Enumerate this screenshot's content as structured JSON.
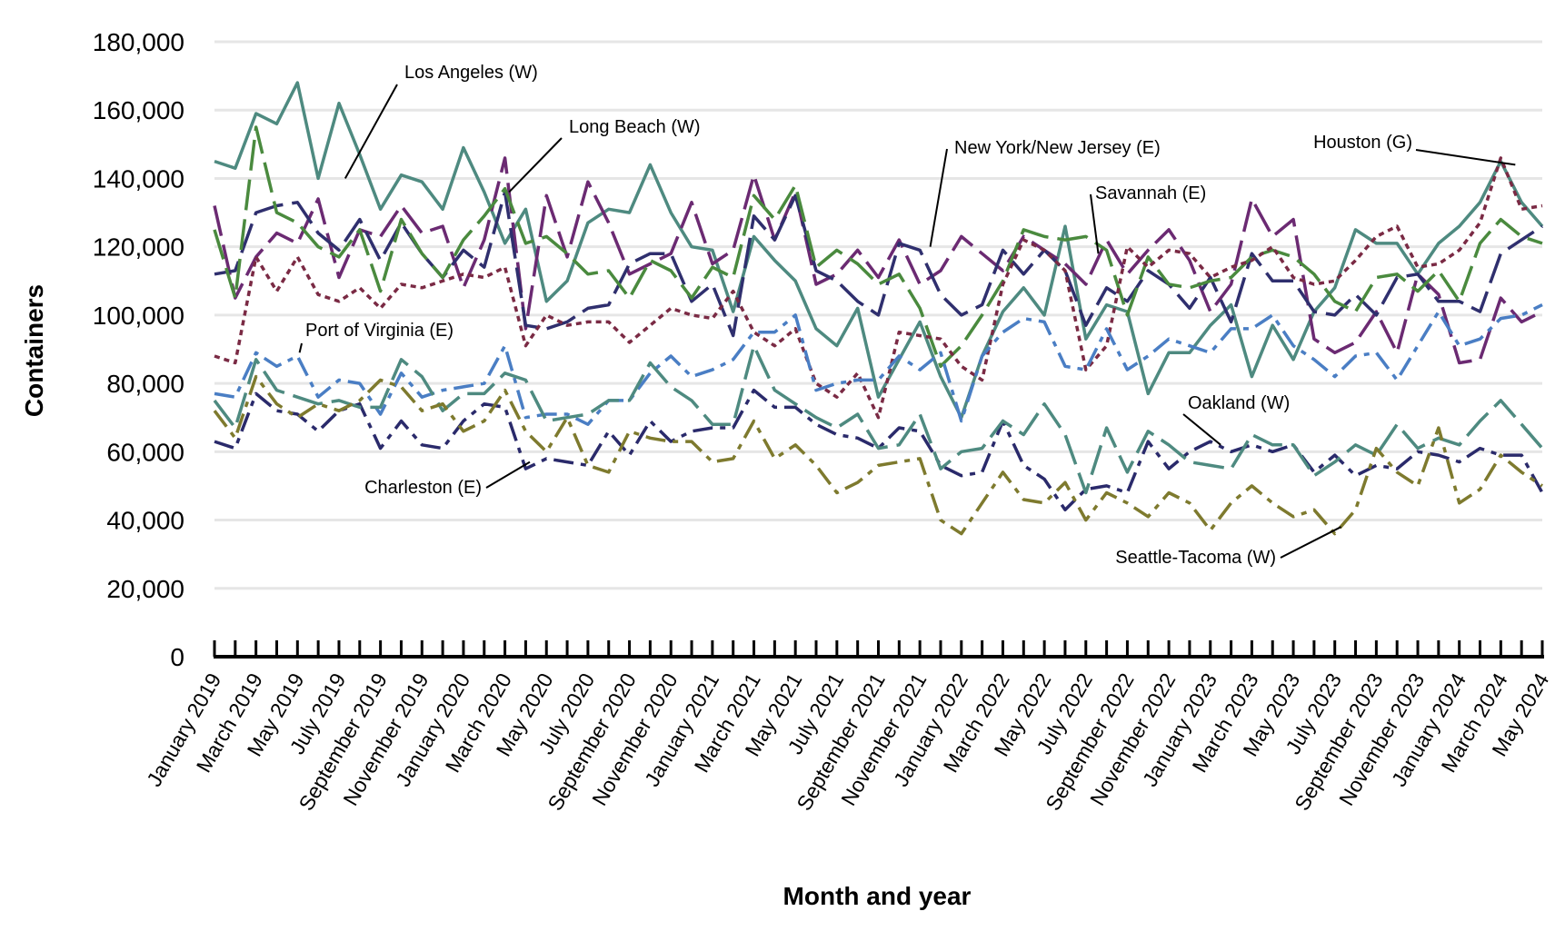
{
  "chart_data": {
    "type": "line",
    "xlabel": "Month and year",
    "ylabel": "Containers",
    "ylim": [
      0,
      180000
    ],
    "yticks": [
      0,
      20000,
      40000,
      60000,
      80000,
      100000,
      120000,
      140000,
      160000,
      180000
    ],
    "ytick_labels": [
      "0",
      "20,000",
      "40,000",
      "60,000",
      "80,000",
      "100,000",
      "120,000",
      "140,000",
      "160,000",
      "180,000"
    ],
    "grid": true,
    "x_tick_labels": [
      "January 2019",
      "March 2019",
      "May 2019",
      "July 2019",
      "September 2019",
      "November 2019",
      "January 2020",
      "March 2020",
      "May 2020",
      "July 2020",
      "September 2020",
      "November 2020",
      "January 2021",
      "March 2021",
      "May 2021",
      "July 2021",
      "September 2021",
      "November 2021",
      "January 2022",
      "March 2022",
      "May 2022",
      "July 2022",
      "September 2022",
      "November 2022",
      "January 2023",
      "March 2023",
      "May 2023",
      "July 2023",
      "September 2023",
      "November 2023",
      "January 2024",
      "March 2024",
      "May 2024"
    ],
    "categories": [
      "Jan 2019",
      "Feb 2019",
      "Mar 2019",
      "Apr 2019",
      "May 2019",
      "Jun 2019",
      "Jul 2019",
      "Aug 2019",
      "Sep 2019",
      "Oct 2019",
      "Nov 2019",
      "Dec 2019",
      "Jan 2020",
      "Feb 2020",
      "Mar 2020",
      "Apr 2020",
      "May 2020",
      "Jun 2020",
      "Jul 2020",
      "Aug 2020",
      "Sep 2020",
      "Oct 2020",
      "Nov 2020",
      "Dec 2020",
      "Jan 2021",
      "Feb 2021",
      "Mar 2021",
      "Apr 2021",
      "May 2021",
      "Jun 2021",
      "Jul 2021",
      "Aug 2021",
      "Sep 2021",
      "Oct 2021",
      "Nov 2021",
      "Dec 2021",
      "Jan 2022",
      "Feb 2022",
      "Mar 2022",
      "Apr 2022",
      "May 2022",
      "Jun 2022",
      "Jul 2022",
      "Aug 2022",
      "Sep 2022",
      "Oct 2022",
      "Nov 2022",
      "Dec 2022",
      "Jan 2023",
      "Feb 2023",
      "Mar 2023",
      "Apr 2023",
      "May 2023",
      "Jun 2023",
      "Jul 2023",
      "Aug 2023",
      "Sep 2023",
      "Oct 2023",
      "Nov 2023",
      "Dec 2023",
      "Jan 2024",
      "Feb 2024",
      "Mar 2024",
      "Apr 2024",
      "May 2024"
    ],
    "series": [
      {
        "name": "Los Angeles (W)",
        "color": "#4e8a80",
        "dash": "solid",
        "values": [
          145000,
          143000,
          159000,
          156000,
          168000,
          140000,
          162000,
          147000,
          131000,
          141000,
          139000,
          131000,
          149000,
          136000,
          121000,
          131000,
          104000,
          110000,
          127000,
          131000,
          130000,
          144000,
          130000,
          120000,
          119000,
          101000,
          123000,
          116000,
          110000,
          96000,
          91000,
          102000,
          76000,
          87000,
          98000,
          82000,
          70000,
          88000,
          101000,
          108000,
          100000,
          126000,
          93000,
          103000,
          101000,
          77000,
          89000,
          89000,
          97000,
          103000,
          82000,
          97000,
          87000,
          101000,
          108000,
          125000,
          121000,
          121000,
          112000,
          121000,
          126000,
          133000,
          145000,
          133000,
          126000
        ]
      },
      {
        "name": "Long Beach (W)",
        "color": "#6b2a72",
        "dash": "longdash",
        "values": [
          132000,
          105000,
          117000,
          124000,
          121000,
          134000,
          111000,
          125000,
          123000,
          132000,
          124000,
          126000,
          108000,
          122000,
          146000,
          96000,
          135000,
          117000,
          139000,
          127000,
          112000,
          115000,
          118000,
          133000,
          115000,
          119000,
          141000,
          122000,
          136000,
          109000,
          112000,
          119000,
          111000,
          122000,
          109000,
          113000,
          123000,
          118000,
          113000,
          123000,
          119000,
          115000,
          109000,
          122000,
          112000,
          119000,
          125000,
          116000,
          101000,
          109000,
          134000,
          123000,
          128000,
          93000,
          89000,
          92000,
          101000,
          89000,
          112000,
          106000,
          86000,
          87000,
          105000,
          98000,
          101000
        ]
      },
      {
        "name": "New York/New Jersey (E)",
        "color": "#2f2f6e",
        "dash": "longdash",
        "values": [
          112000,
          113000,
          130000,
          132000,
          133000,
          124000,
          119000,
          128000,
          116000,
          127000,
          118000,
          111000,
          119000,
          114000,
          136000,
          97000,
          96000,
          98000,
          102000,
          103000,
          115000,
          118000,
          118000,
          104000,
          109000,
          94000,
          129000,
          122000,
          135000,
          113000,
          110000,
          104000,
          100000,
          121000,
          119000,
          106000,
          100000,
          103000,
          119000,
          112000,
          119000,
          113000,
          97000,
          108000,
          104000,
          113000,
          109000,
          102000,
          111000,
          98000,
          118000,
          110000,
          110000,
          101000,
          100000,
          106000,
          100000,
          111000,
          112000,
          104000,
          104000,
          101000,
          118000,
          122000,
          126000
        ]
      },
      {
        "name": "Savannah (E)",
        "color": "#4a8a3e",
        "dash": "longdash",
        "values": [
          125000,
          105000,
          155000,
          130000,
          127000,
          120000,
          117000,
          125000,
          107000,
          128000,
          118000,
          111000,
          122000,
          129000,
          137000,
          121000,
          123000,
          118000,
          112000,
          113000,
          105000,
          116000,
          113000,
          105000,
          114000,
          111000,
          135000,
          128000,
          138000,
          114000,
          119000,
          115000,
          109000,
          112000,
          102000,
          85000,
          91000,
          100000,
          110000,
          125000,
          123000,
          122000,
          123000,
          119000,
          100000,
          117000,
          109000,
          108000,
          110000,
          111000,
          117000,
          119000,
          117000,
          112000,
          104000,
          101000,
          111000,
          112000,
          107000,
          113000,
          104000,
          121000,
          128000,
          123000,
          121000
        ]
      },
      {
        "name": "Houston (G)",
        "color": "#7a2a44",
        "dash": "dotted",
        "values": [
          88000,
          86000,
          117000,
          107000,
          117000,
          106000,
          104000,
          108000,
          102000,
          109000,
          108000,
          110000,
          112000,
          111000,
          114000,
          91000,
          100000,
          97000,
          98000,
          98000,
          92000,
          97000,
          102000,
          100000,
          99000,
          107000,
          95000,
          91000,
          96000,
          80000,
          76000,
          83000,
          70000,
          95000,
          94000,
          93000,
          85000,
          81000,
          109000,
          122000,
          119000,
          113000,
          84000,
          91000,
          120000,
          114000,
          119000,
          118000,
          111000,
          114000,
          116000,
          120000,
          111000,
          109000,
          110000,
          116000,
          123000,
          126000,
          114000,
          115000,
          119000,
          127000,
          146000,
          131000,
          132000
        ]
      },
      {
        "name": "Port of Virginia (E)",
        "color": "#4a7ec4",
        "dash": "dashdot",
        "values": [
          77000,
          76000,
          89000,
          85000,
          88000,
          76000,
          81000,
          80000,
          71000,
          83000,
          76000,
          78000,
          79000,
          80000,
          91000,
          70000,
          71000,
          71000,
          68000,
          75000,
          75000,
          83000,
          88000,
          82000,
          84000,
          87000,
          95000,
          95000,
          100000,
          78000,
          80000,
          81000,
          81000,
          88000,
          84000,
          89000,
          69000,
          88000,
          95000,
          99000,
          98000,
          85000,
          84000,
          96000,
          84000,
          88000,
          93000,
          91000,
          89000,
          96000,
          96000,
          100000,
          91000,
          87000,
          82000,
          88000,
          89000,
          81000,
          91000,
          101000,
          91000,
          93000,
          99000,
          100000,
          103000
        ]
      },
      {
        "name": "Oakland (W)",
        "color": "#2a2a6b",
        "dash": "dashdot",
        "values": [
          63000,
          61000,
          77000,
          72000,
          71000,
          66000,
          72000,
          74000,
          61000,
          69000,
          62000,
          61000,
          69000,
          74000,
          73000,
          55000,
          58000,
          57000,
          56000,
          66000,
          59000,
          69000,
          63000,
          66000,
          67000,
          67000,
          78000,
          73000,
          73000,
          68000,
          65000,
          64000,
          61000,
          67000,
          66000,
          56000,
          53000,
          54000,
          69000,
          56000,
          52000,
          43000,
          49000,
          50000,
          48000,
          63000,
          55000,
          60000,
          63000,
          60000,
          62000,
          60000,
          62000,
          54000,
          59000,
          53000,
          56000,
          55000,
          60000,
          59000,
          57000,
          61000,
          59000,
          59000,
          48000
        ]
      },
      {
        "name": "Charleston (E)",
        "color": "#4e8a80",
        "dash": "longdash",
        "values": [
          75000,
          67000,
          87000,
          78000,
          76000,
          74000,
          75000,
          73000,
          73000,
          87000,
          82000,
          72000,
          77000,
          77000,
          83000,
          81000,
          69000,
          70000,
          71000,
          75000,
          75000,
          86000,
          79000,
          75000,
          68000,
          68000,
          91000,
          78000,
          74000,
          70000,
          67000,
          71000,
          61000,
          62000,
          71000,
          55000,
          60000,
          61000,
          69000,
          65000,
          74000,
          65000,
          48000,
          67000,
          54000,
          66000,
          62000,
          57000,
          56000,
          55000,
          65000,
          62000,
          62000,
          53000,
          57000,
          62000,
          59000,
          68000,
          61000,
          64000,
          62000,
          69000,
          75000,
          68000,
          61000
        ]
      },
      {
        "name": "Seattle-Tacoma (W)",
        "color": "#7e7a2e",
        "dash": "dashdot",
        "values": [
          72000,
          64000,
          82000,
          74000,
          70000,
          74000,
          72000,
          75000,
          81000,
          79000,
          72000,
          74000,
          66000,
          69000,
          78000,
          66000,
          60000,
          70000,
          56000,
          54000,
          66000,
          64000,
          63000,
          63000,
          57000,
          58000,
          69000,
          58000,
          62000,
          56000,
          48000,
          51000,
          56000,
          57000,
          58000,
          40000,
          36000,
          45000,
          54000,
          46000,
          45000,
          51000,
          40000,
          48000,
          45000,
          41000,
          48000,
          45000,
          37000,
          45000,
          50000,
          45000,
          41000,
          43000,
          36000,
          43000,
          61000,
          54000,
          50000,
          67000,
          45000,
          49000,
          59000,
          54000,
          50000
        ]
      }
    ],
    "annotations": [
      "Los Angeles (W)",
      "Long Beach (W)",
      "New York/New Jersey (E)",
      "Houston (G)",
      "Savannah (E)",
      "Port of Virginia (E)",
      "Oakland (W)",
      "Charleston (E)",
      "Seattle-Tacoma (W)"
    ]
  }
}
